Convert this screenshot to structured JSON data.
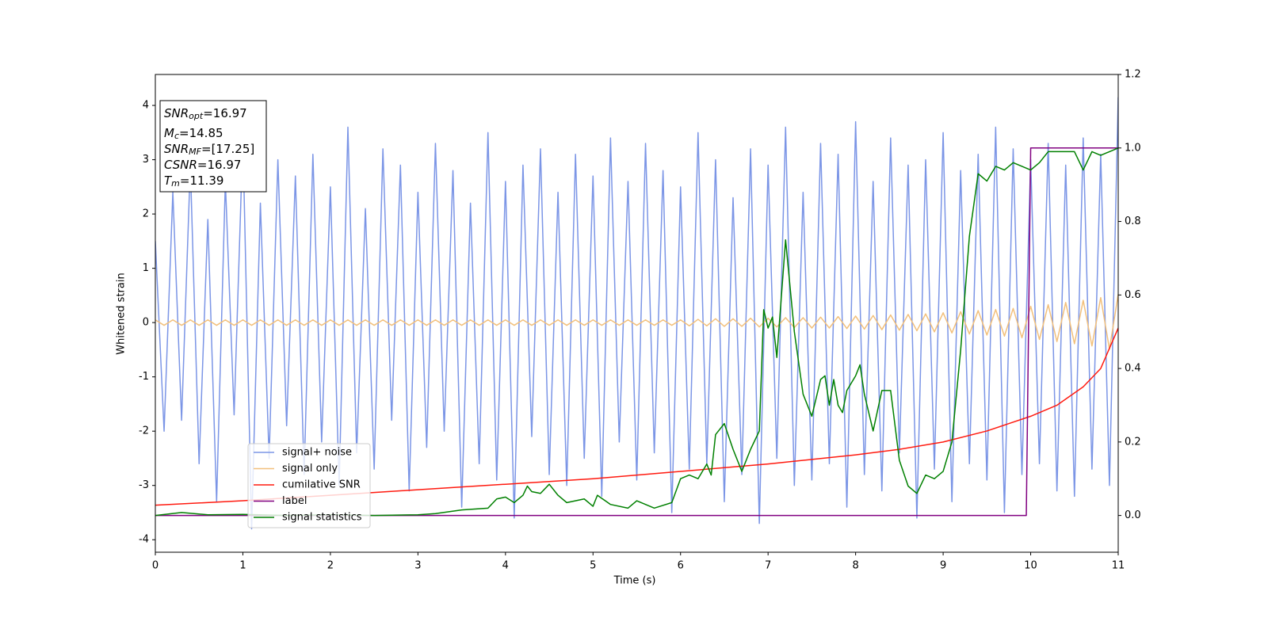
{
  "chart_data": {
    "type": "line",
    "xlabel": "Time (s)",
    "ylabel": "Whitened strain",
    "xlim": [
      0,
      11
    ],
    "ylim": [
      -4.23,
      4.57
    ],
    "y2lim": [
      -0.1,
      1.2
    ],
    "xticks": [
      0,
      1,
      2,
      3,
      4,
      5,
      6,
      7,
      8,
      9,
      10,
      11
    ],
    "yticks": [
      -4,
      -3,
      -2,
      -1,
      0,
      1,
      2,
      3,
      4
    ],
    "y2ticks": [
      {
        "value": 0,
        "label": "0.0"
      },
      {
        "value": 0.2,
        "label": "0.2"
      },
      {
        "value": 0.4,
        "label": "0.4"
      },
      {
        "value": 0.6,
        "label": "0.6"
      },
      {
        "value": 0.8,
        "label": "0.8"
      },
      {
        "value": 1,
        "label": "1.0"
      },
      {
        "value": 1.2,
        "label": "1.2"
      }
    ],
    "legend_loc": "lower left",
    "annotations": [
      {
        "text": "SNR",
        "sub": "opt",
        "value": "=16.97"
      },
      {
        "text": "M",
        "sub": "c",
        "value": "=14.85"
      },
      {
        "text": "SNR",
        "sub": "MF",
        "value": "=[17.25]"
      },
      {
        "text": "CSNR",
        "value": "=16.97"
      },
      {
        "text": "T",
        "sub": "m",
        "value": "=11.39"
      }
    ],
    "x": [
      0,
      0.1,
      0.2,
      0.3,
      0.4,
      0.5,
      0.6,
      0.7,
      0.8,
      0.9,
      1,
      1.1,
      1.2,
      1.3,
      1.4,
      1.5,
      1.6,
      1.7,
      1.8,
      1.9,
      2,
      2.1,
      2.2,
      2.3,
      2.4,
      2.5,
      2.6,
      2.7,
      2.8,
      2.9,
      3,
      3.1,
      3.2,
      3.3,
      3.4,
      3.5,
      3.6,
      3.7,
      3.8,
      3.9,
      4,
      4.1,
      4.2,
      4.3,
      4.4,
      4.5,
      4.6,
      4.7,
      4.8,
      4.9,
      5,
      5.1,
      5.2,
      5.3,
      5.4,
      5.5,
      5.6,
      5.7,
      5.8,
      5.9,
      6,
      6.1,
      6.2,
      6.3,
      6.4,
      6.5,
      6.6,
      6.7,
      6.8,
      6.9,
      7,
      7.1,
      7.2,
      7.3,
      7.4,
      7.5,
      7.6,
      7.7,
      7.8,
      7.9,
      8,
      8.1,
      8.2,
      8.3,
      8.4,
      8.5,
      8.6,
      8.7,
      8.8,
      8.9,
      9,
      9.1,
      9.2,
      9.3,
      9.4,
      9.5,
      9.6,
      9.7,
      9.8,
      9.9,
      10,
      10.1,
      10.2,
      10.3,
      10.4,
      10.5,
      10.6,
      10.7,
      10.8,
      10.9,
      11
    ],
    "series": [
      {
        "name": "signal+ noise",
        "color": "#7b95e6",
        "values": [
          1.5,
          -2.0,
          2.4,
          -1.8,
          2.9,
          -2.6,
          1.9,
          -3.3,
          2.6,
          -1.7,
          3.4,
          -3.8,
          2.2,
          -2.5,
          3.0,
          -1.9,
          2.7,
          -2.8,
          3.1,
          -2.2,
          2.5,
          -3.0,
          3.6,
          -2.4,
          2.1,
          -2.7,
          3.2,
          -1.8,
          2.9,
          -3.1,
          2.4,
          -2.3,
          3.3,
          -2.0,
          2.8,
          -3.4,
          2.2,
          -2.6,
          3.5,
          -2.9,
          2.6,
          -3.6,
          2.9,
          -2.1,
          3.2,
          -2.8,
          2.4,
          -3.0,
          3.1,
          -2.5,
          2.7,
          -3.2,
          3.4,
          -2.2,
          2.6,
          -2.9,
          3.3,
          -2.4,
          2.8,
          -3.5,
          2.5,
          -2.7,
          3.5,
          -2.6,
          3.0,
          -3.3,
          2.3,
          -2.8,
          3.2,
          -3.7,
          2.9,
          -2.5,
          3.6,
          -3.0,
          2.4,
          -2.9,
          3.3,
          -2.6,
          3.1,
          -3.4,
          3.7,
          -2.8,
          2.6,
          -3.1,
          3.4,
          -2.4,
          2.9,
          -3.6,
          3.0,
          -2.7,
          3.5,
          -3.3,
          2.8,
          -2.6,
          3.1,
          -2.9,
          3.6,
          -3.5,
          3.2,
          -2.8,
          3.0,
          -2.6,
          3.3,
          -3.1,
          2.9,
          -3.2,
          3.4,
          -2.7,
          3.1,
          -3.0,
          4.15
        ]
      },
      {
        "name": "signal only",
        "color": "#f2c07c",
        "values": [
          0.05,
          -0.05,
          0.05,
          -0.05,
          0.05,
          -0.05,
          0.05,
          -0.05,
          0.05,
          -0.05,
          0.05,
          -0.05,
          0.05,
          -0.05,
          0.05,
          -0.05,
          0.05,
          -0.05,
          0.05,
          -0.05,
          0.05,
          -0.05,
          0.05,
          -0.05,
          0.05,
          -0.05,
          0.05,
          -0.05,
          0.05,
          -0.05,
          0.05,
          -0.05,
          0.05,
          -0.05,
          0.05,
          -0.05,
          0.05,
          -0.05,
          0.05,
          -0.05,
          0.05,
          -0.05,
          0.05,
          -0.05,
          0.05,
          -0.05,
          0.05,
          -0.05,
          0.05,
          -0.05,
          0.05,
          -0.05,
          0.05,
          -0.05,
          0.05,
          -0.05,
          0.05,
          -0.05,
          0.05,
          -0.05,
          0.05,
          -0.06,
          0.06,
          -0.06,
          0.07,
          -0.07,
          0.07,
          -0.07,
          0.08,
          -0.08,
          0.08,
          -0.08,
          0.09,
          -0.09,
          0.09,
          -0.1,
          0.1,
          -0.1,
          0.11,
          -0.11,
          0.12,
          -0.12,
          0.13,
          -0.13,
          0.14,
          -0.14,
          0.15,
          -0.15,
          0.16,
          -0.17,
          0.18,
          -0.19,
          0.2,
          -0.21,
          0.22,
          -0.23,
          0.24,
          -0.25,
          0.26,
          -0.28,
          0.3,
          -0.31,
          0.33,
          -0.35,
          0.37,
          -0.39,
          0.41,
          -0.43,
          0.46,
          -0.49,
          0.52
        ]
      },
      {
        "name": "cumilative SNR",
        "color": "#ff1a0f",
        "axis": "y2",
        "x": [
          0,
          1,
          2,
          3,
          4,
          5,
          6,
          7,
          8,
          8.5,
          9,
          9.5,
          10,
          10.3,
          10.6,
          10.8,
          11
        ],
        "values": [
          0.028,
          0.04,
          0.055,
          0.07,
          0.085,
          0.1,
          0.12,
          0.14,
          0.165,
          0.18,
          0.2,
          0.23,
          0.27,
          0.3,
          0.35,
          0.4,
          0.51
        ]
      },
      {
        "name": "label",
        "color": "#800080",
        "axis": "y2",
        "x": [
          0,
          9.95,
          10,
          11
        ],
        "values": [
          0,
          0,
          1,
          1
        ]
      },
      {
        "name": "signal statistics",
        "color": "#008000",
        "axis": "y2",
        "x": [
          0,
          0.3,
          0.6,
          1,
          1.5,
          2,
          2.5,
          3,
          3.2,
          3.5,
          3.8,
          3.9,
          4,
          4.1,
          4.2,
          4.25,
          4.3,
          4.4,
          4.5,
          4.6,
          4.7,
          4.9,
          5,
          5.05,
          5.2,
          5.4,
          5.5,
          5.7,
          5.9,
          6,
          6.1,
          6.2,
          6.3,
          6.35,
          6.4,
          6.5,
          6.6,
          6.7,
          6.8,
          6.9,
          6.95,
          7,
          7.05,
          7.1,
          7.2,
          7.3,
          7.4,
          7.5,
          7.6,
          7.65,
          7.7,
          7.75,
          7.8,
          7.85,
          7.9,
          8,
          8.05,
          8.1,
          8.2,
          8.3,
          8.4,
          8.5,
          8.6,
          8.7,
          8.8,
          8.9,
          9,
          9.1,
          9.2,
          9.3,
          9.4,
          9.5,
          9.6,
          9.7,
          9.8,
          9.9,
          10,
          10.1,
          10.2,
          10.5,
          10.6,
          10.7,
          10.8,
          11
        ],
        "values": [
          0,
          0.008,
          0.002,
          0.003,
          0,
          0.002,
          0,
          0.002,
          0.005,
          0.015,
          0.02,
          0.045,
          0.05,
          0.035,
          0.055,
          0.08,
          0.065,
          0.06,
          0.085,
          0.055,
          0.035,
          0.045,
          0.025,
          0.055,
          0.03,
          0.02,
          0.04,
          0.02,
          0.035,
          0.1,
          0.11,
          0.1,
          0.14,
          0.11,
          0.22,
          0.25,
          0.18,
          0.12,
          0.18,
          0.23,
          0.56,
          0.51,
          0.54,
          0.43,
          0.75,
          0.5,
          0.33,
          0.27,
          0.37,
          0.38,
          0.3,
          0.37,
          0.3,
          0.28,
          0.34,
          0.38,
          0.41,
          0.33,
          0.23,
          0.34,
          0.34,
          0.15,
          0.08,
          0.06,
          0.11,
          0.1,
          0.12,
          0.2,
          0.45,
          0.76,
          0.93,
          0.91,
          0.95,
          0.94,
          0.96,
          0.95,
          0.94,
          0.96,
          0.99,
          0.99,
          0.94,
          0.99,
          0.98,
          1.0
        ]
      }
    ]
  }
}
